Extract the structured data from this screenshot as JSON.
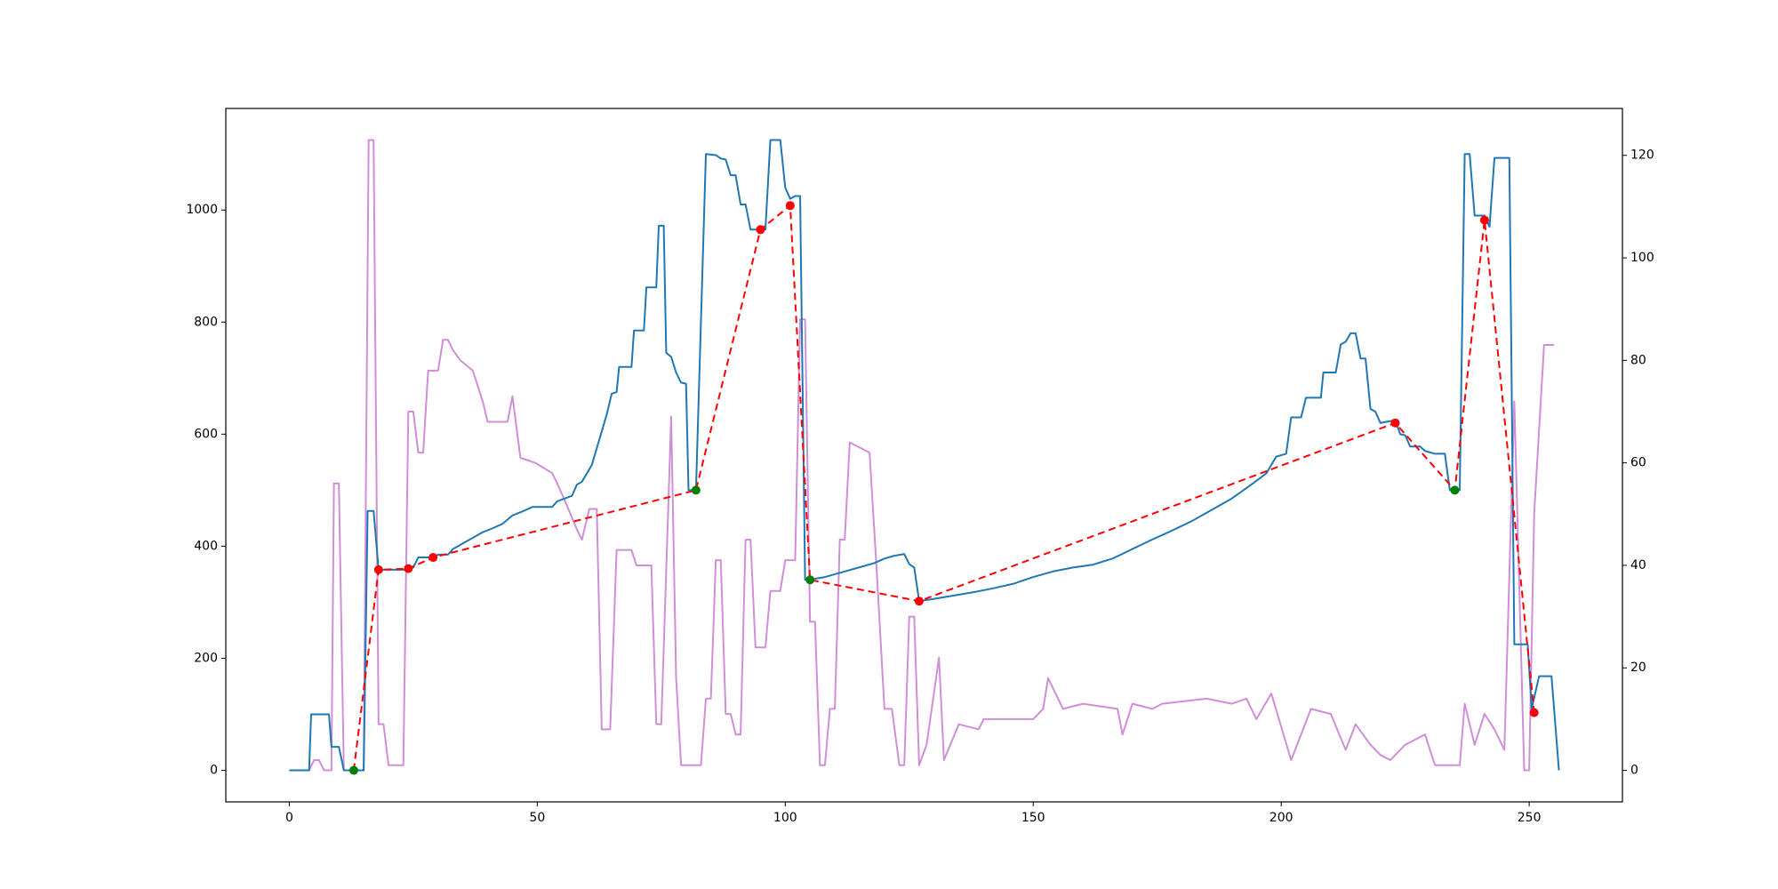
{
  "chart_data": {
    "type": "line",
    "xlim": [
      -12.8,
      268.8
    ],
    "xticks": [
      0,
      50,
      100,
      150,
      200,
      250
    ],
    "ylim": [
      -56.25,
      1181.25
    ],
    "yticks": [
      0,
      200,
      400,
      600,
      800,
      1000
    ],
    "y2lim": [
      -6.15,
      129.15
    ],
    "y2ticks": [
      0,
      20,
      40,
      60,
      80,
      100,
      120
    ],
    "series": [
      {
        "type": "line",
        "color": "#cf8fd6",
        "axis": "y2",
        "x": [
          0,
          4,
          5,
          6,
          7,
          8.5,
          9,
          10,
          11,
          15,
          16,
          17,
          18,
          19,
          20,
          23,
          24,
          25,
          26,
          27,
          28,
          30,
          31,
          32,
          33,
          34.5,
          37,
          39,
          40,
          44,
          45,
          46.6,
          49.6,
          53,
          54,
          55.4,
          58,
          59,
          60.5,
          62,
          63,
          64.7,
          66,
          69,
          70,
          73,
          74,
          75,
          77,
          78,
          79,
          83,
          84,
          85,
          86,
          87,
          88,
          89,
          90,
          91,
          92,
          93,
          94,
          96,
          97,
          99,
          100,
          102,
          103,
          104,
          105,
          106,
          107,
          108,
          109,
          110,
          111,
          112,
          113,
          115,
          117,
          118.5,
          120,
          121.5,
          123,
          124,
          125,
          126,
          127,
          128.5,
          131,
          132,
          135,
          139,
          140,
          150,
          152,
          153,
          156,
          160,
          167,
          168,
          170,
          174,
          176,
          185,
          190,
          193,
          195,
          198,
          202,
          206,
          210,
          213,
          215,
          218,
          220,
          222,
          225,
          227,
          229,
          231,
          236,
          237,
          239,
          241,
          243,
          245,
          247,
          249,
          250,
          251,
          253,
          255
        ],
        "values": [
          0,
          0,
          2,
          2,
          0,
          0,
          56,
          56,
          0,
          0,
          123,
          123,
          9,
          9,
          1,
          1,
          70,
          70,
          62,
          62,
          78,
          78,
          84,
          84,
          82,
          80,
          78,
          72,
          68,
          68,
          73,
          61,
          60,
          58,
          56,
          53,
          47,
          45,
          51,
          51,
          8,
          8,
          43,
          43,
          40,
          40,
          9,
          9,
          69,
          18,
          1,
          1,
          14,
          14,
          41,
          41,
          11,
          11,
          7,
          7,
          45,
          45,
          24,
          24,
          35,
          35,
          41,
          41,
          88,
          88,
          29,
          29,
          1,
          1,
          12,
          12,
          45,
          45,
          64,
          63,
          62,
          38,
          12,
          12,
          1,
          1,
          30,
          30,
          1,
          5,
          22,
          2,
          9,
          8,
          10,
          10,
          12,
          18,
          12,
          13,
          12,
          7,
          13,
          12,
          13,
          14,
          13,
          14,
          10,
          15,
          2,
          12,
          11,
          4,
          9,
          5,
          3,
          2,
          5,
          6,
          7,
          1,
          1,
          13,
          5,
          11,
          8,
          4,
          72,
          0,
          0,
          50,
          83,
          83
        ]
      },
      {
        "type": "line",
        "color": "#1f77b4",
        "axis": "y",
        "x": [
          0,
          4,
          4.4,
          8,
          8.5,
          10,
          11,
          15,
          15.8,
          17,
          18,
          24,
          25,
          26,
          28,
          29,
          30,
          32,
          33,
          35,
          37,
          39,
          41,
          43,
          45,
          47,
          49,
          53,
          54,
          57,
          58,
          59,
          60,
          61,
          62,
          63,
          64,
          65,
          66,
          66.5,
          69,
          69.5,
          71.5,
          72,
          74,
          74.5,
          75.5,
          76,
          77,
          78,
          79,
          80,
          80.5,
          82,
          84,
          86,
          87,
          88,
          89,
          90,
          91,
          92,
          93,
          96,
          97,
          99,
          100,
          101,
          102,
          103,
          104,
          106,
          108,
          110,
          112,
          114,
          116,
          118,
          120,
          122,
          124,
          125,
          126,
          127,
          130,
          134,
          138,
          142,
          146,
          150,
          154,
          158,
          162,
          166,
          170,
          174,
          178,
          182,
          186,
          190,
          194,
          197,
          199,
          201,
          202,
          204,
          205,
          208,
          208.5,
          211,
          212,
          213,
          214,
          215,
          216,
          217,
          218,
          219,
          220,
          223,
          224,
          225,
          226,
          228,
          229,
          231,
          233,
          234,
          236,
          237,
          238,
          239,
          241,
          242,
          243,
          246,
          247,
          249.7,
          250.5,
          252,
          254.5,
          256
        ],
        "values": [
          0,
          0,
          100,
          100,
          42,
          42,
          0,
          0,
          463,
          463,
          358,
          358,
          362,
          380,
          380,
          378,
          385,
          385,
          395,
          405,
          415,
          425,
          432,
          440,
          455,
          462,
          470,
          470,
          480,
          490,
          510,
          515,
          530,
          545,
          575,
          605,
          635,
          672,
          675,
          720,
          720,
          785,
          785,
          862,
          862,
          972,
          972,
          745,
          738,
          710,
          692,
          690,
          500,
          500,
          1100,
          1098,
          1092,
          1090,
          1062,
          1062,
          1010,
          1010,
          965,
          965,
          1125,
          1125,
          1040,
          1020,
          1025,
          1025,
          340,
          342,
          345,
          350,
          355,
          360,
          365,
          370,
          378,
          383,
          386,
          368,
          362,
          302,
          306,
          312,
          318,
          325,
          333,
          345,
          355,
          362,
          367,
          378,
          395,
          412,
          428,
          445,
          465,
          485,
          510,
          530,
          560,
          565,
          630,
          630,
          665,
          665,
          710,
          710,
          760,
          765,
          780,
          780,
          735,
          735,
          645,
          640,
          620,
          625,
          600,
          598,
          578,
          578,
          570,
          565,
          565,
          500,
          500,
          1100,
          1100,
          990,
          990,
          970,
          1093,
          1093,
          225,
          225,
          110,
          168,
          168,
          0
        ]
      },
      {
        "type": "line",
        "color": "#ff0000",
        "axis": "y",
        "dashed": true,
        "x": [
          13,
          18,
          24,
          29,
          82,
          95,
          101,
          105,
          127,
          223,
          235,
          241,
          251
        ],
        "values": [
          0,
          358,
          360,
          380,
          500,
          965,
          1008,
          340,
          302,
          620,
          500,
          982,
          103
        ]
      },
      {
        "type": "scatter",
        "color": "#ff0000",
        "axis": "y",
        "x": [
          18,
          24,
          29,
          95,
          101,
          127,
          223,
          241,
          251
        ],
        "values": [
          358,
          360,
          380,
          965,
          1008,
          302,
          620,
          982,
          103
        ]
      },
      {
        "type": "scatter",
        "color": "#008000",
        "axis": "y",
        "x": [
          13,
          82,
          105,
          235
        ],
        "values": [
          0,
          500,
          340,
          500
        ]
      }
    ]
  }
}
